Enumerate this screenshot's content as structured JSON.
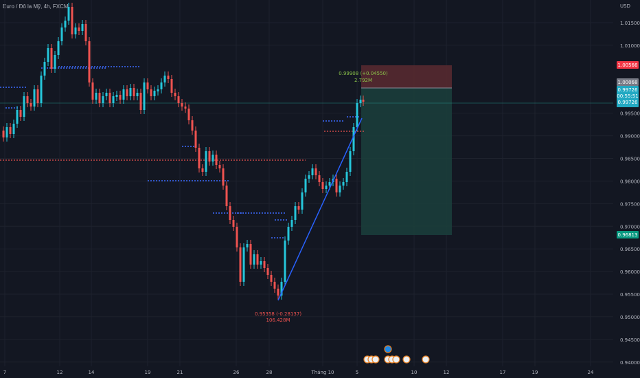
{
  "header": {
    "symbol_title": "Euro / Đô la Mỹ, 4h, FXCM",
    "currency": "USD"
  },
  "price_axis": {
    "ticks": [
      "1.01500",
      "1.01000",
      "0.99500",
      "0.99000",
      "0.98500",
      "0.98000",
      "0.97500",
      "0.97000",
      "0.96500",
      "0.96000",
      "0.95500",
      "0.95000",
      "0.94500",
      "0.94000"
    ],
    "badges": {
      "stop": "1.00566",
      "entry": "1.00068",
      "current": "0.99726",
      "countdown": "00:55:51",
      "current2": "0.99726",
      "target": "0.96813"
    }
  },
  "time_axis": {
    "labels": [
      "7",
      "12",
      "14",
      "19",
      "21",
      "26",
      "28",
      "Tháng 10",
      "5",
      "10",
      "12",
      "17",
      "19",
      "24"
    ]
  },
  "annotations": {
    "high_label": "0.99908 (+0.04550)",
    "high_volume": "2.792M",
    "low_label": "0.95358 (-0.28137)",
    "low_volume": "106.428M"
  },
  "colors": {
    "background": "#131722",
    "up": "#26c6da",
    "down": "#ef5350",
    "trend": "#2962ff",
    "stop_zone": "#5a2a30",
    "target_zone": "#1b3f3c",
    "target_badge": "#089981",
    "stop_badge": "#f23645"
  },
  "chart_data": {
    "type": "candlestick",
    "symbol": "EURUSD",
    "timeframe": "4h",
    "price_range": [
      0.9385,
      1.0175
    ],
    "position": {
      "type": "short",
      "entry": 1.00068,
      "stop": 1.00566,
      "target": 0.96813,
      "current": 0.99726
    },
    "trendline": {
      "from": 0.9536,
      "to": 0.9973
    },
    "swing_high": 0.99908,
    "swing_low": 0.95358
  }
}
